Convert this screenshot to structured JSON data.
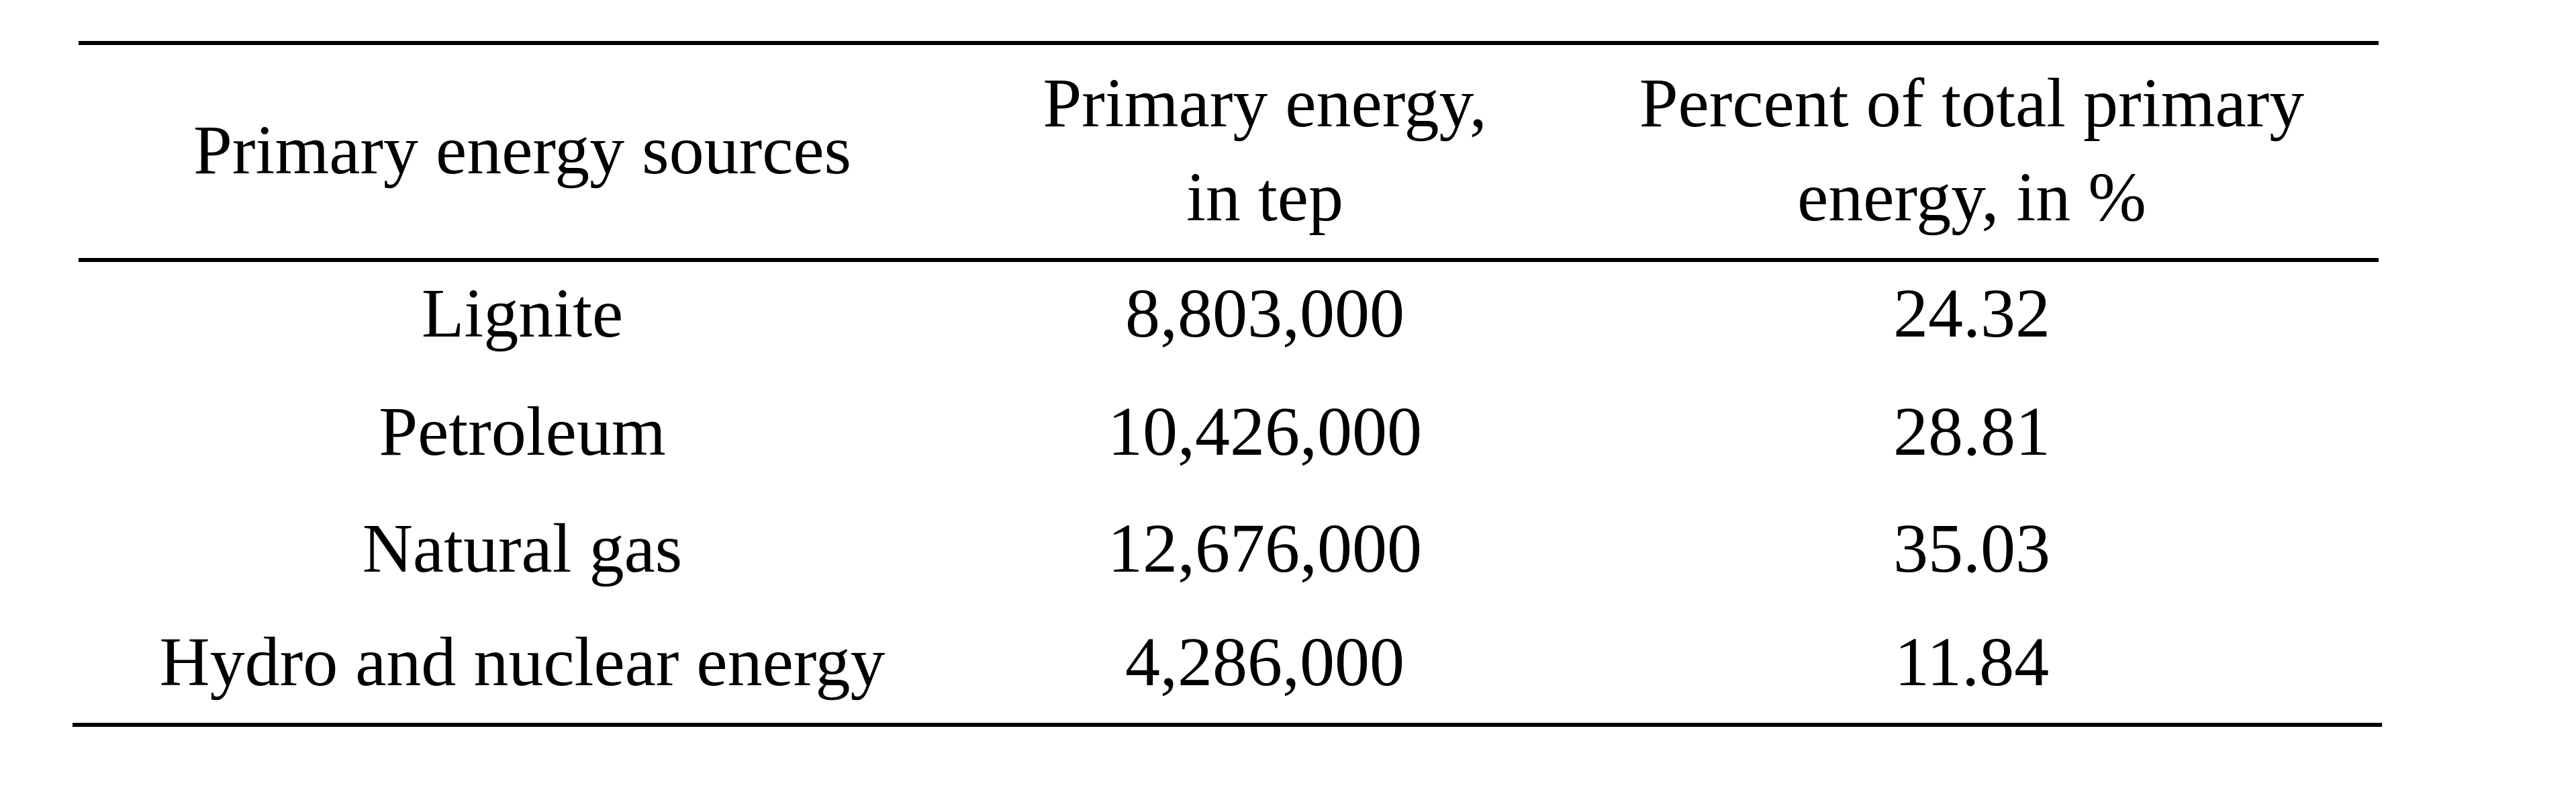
{
  "table": {
    "header": [
      [
        "Primary energy sources"
      ],
      [
        "Primary energy,",
        "in tep"
      ],
      [
        "Percent of total primary",
        "energy, in %"
      ]
    ],
    "rows": [
      [
        "Lignite",
        "8,803,000",
        "24.32"
      ],
      [
        "Petroleum",
        "10,426,000",
        "28.81"
      ],
      [
        "Natural gas",
        "12,676,000",
        "35.03"
      ],
      [
        "Hydro and nuclear energy",
        "4,286,000",
        "11.84"
      ]
    ]
  }
}
